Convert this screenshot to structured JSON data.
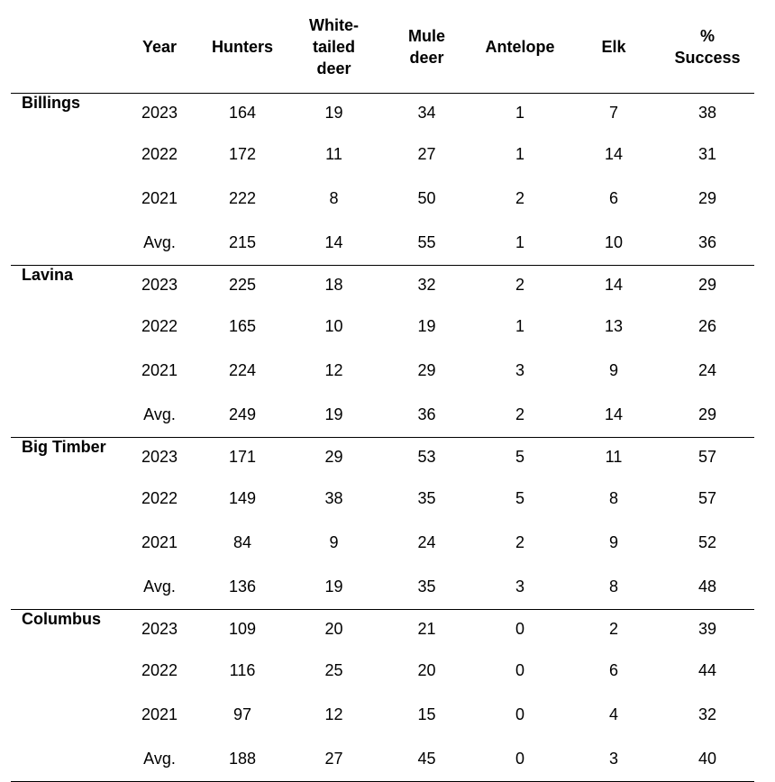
{
  "table": {
    "headers": [
      "",
      "Year",
      "Hunters",
      "White-\ntailed\ndeer",
      "Mule\ndeer",
      "Antelope",
      "Elk",
      "%\nSuccess"
    ],
    "header_lines": [
      [],
      [
        "Year"
      ],
      [
        "Hunters"
      ],
      [
        "White-",
        "tailed",
        "deer"
      ],
      [
        "Mule",
        "deer"
      ],
      [
        "Antelope"
      ],
      [
        "Elk"
      ],
      [
        "%",
        "Success"
      ]
    ],
    "groups": [
      {
        "location": "Billings",
        "rows": [
          [
            "2023",
            "164",
            "19",
            "34",
            "1",
            "7",
            "38"
          ],
          [
            "2022",
            "172",
            "11",
            "27",
            "1",
            "14",
            "31"
          ],
          [
            "2021",
            "222",
            "8",
            "50",
            "2",
            "6",
            "29"
          ],
          [
            "Avg.",
            "215",
            "14",
            "55",
            "1",
            "10",
            "36"
          ]
        ]
      },
      {
        "location": "Lavina",
        "rows": [
          [
            "2023",
            "225",
            "18",
            "32",
            "2",
            "14",
            "29"
          ],
          [
            "2022",
            "165",
            "10",
            "19",
            "1",
            "13",
            "26"
          ],
          [
            "2021",
            "224",
            "12",
            "29",
            "3",
            "9",
            "24"
          ],
          [
            "Avg.",
            "249",
            "19",
            "36",
            "2",
            "14",
            "29"
          ]
        ]
      },
      {
        "location": "Big Timber",
        "rows": [
          [
            "2023",
            "171",
            "29",
            "53",
            "5",
            "11",
            "57"
          ],
          [
            "2022",
            "149",
            "38",
            "35",
            "5",
            "8",
            "57"
          ],
          [
            "2021",
            "84",
            "9",
            "24",
            "2",
            "9",
            "52"
          ],
          [
            "Avg.",
            "136",
            "19",
            "35",
            "3",
            "8",
            "48"
          ]
        ]
      },
      {
        "location": "Columbus",
        "rows": [
          [
            "2023",
            "109",
            "20",
            "21",
            "0",
            "2",
            "39"
          ],
          [
            "2022",
            "116",
            "25",
            "20",
            "0",
            "6",
            "44"
          ],
          [
            "2021",
            "97",
            "12",
            "15",
            "0",
            "4",
            "32"
          ],
          [
            "Avg.",
            "188",
            "27",
            "45",
            "0",
            "3",
            "40"
          ]
        ]
      }
    ]
  }
}
